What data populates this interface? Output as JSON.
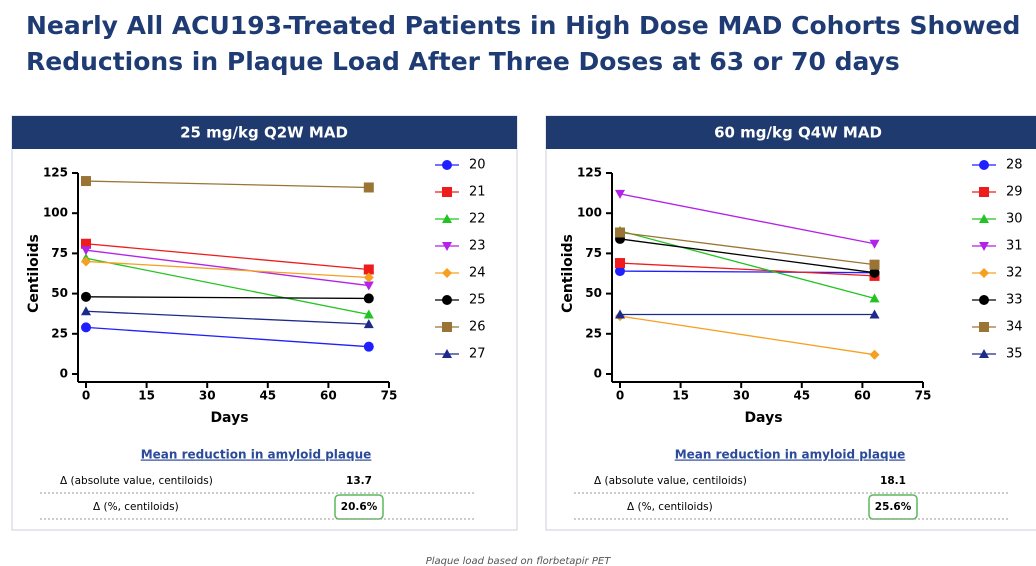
{
  "title": [
    "Nearly All ACU193-Treated Patients in High Dose MAD Cohorts Showed",
    "Reductions in Plaque Load After Three Doses at 63 or 70 days"
  ],
  "chart_data": [
    {
      "type": "line",
      "title": "25 mg/kg Q2W MAD",
      "xlabel": "Days",
      "ylabel": "Centiloids",
      "x": [
        0,
        70
      ],
      "xlim": [
        0,
        75
      ],
      "xticks": [
        0,
        15,
        30,
        45,
        60,
        75
      ],
      "ylim": [
        0,
        125
      ],
      "yticks": [
        0,
        25,
        50,
        75,
        100,
        125
      ],
      "series": [
        {
          "name": "20",
          "color": "#1f1fff",
          "marker": "circle",
          "values": [
            29,
            17
          ]
        },
        {
          "name": "21",
          "color": "#ee1c1c",
          "marker": "square",
          "values": [
            81,
            65
          ]
        },
        {
          "name": "22",
          "color": "#22c322",
          "marker": "triangle",
          "values": [
            72,
            37
          ]
        },
        {
          "name": "23",
          "color": "#b322e8",
          "marker": "triangle-down",
          "values": [
            77,
            55
          ]
        },
        {
          "name": "24",
          "color": "#f5a020",
          "marker": "diamond",
          "values": [
            70,
            60
          ]
        },
        {
          "name": "25",
          "color": "#000000",
          "marker": "circle",
          "values": [
            48,
            47
          ]
        },
        {
          "name": "26",
          "color": "#9a7434",
          "marker": "square",
          "values": [
            120,
            116
          ]
        },
        {
          "name": "27",
          "color": "#1e2a8a",
          "marker": "triangle",
          "values": [
            39,
            31
          ]
        }
      ]
    },
    {
      "type": "line",
      "title": "60 mg/kg Q4W MAD",
      "xlabel": "Days",
      "ylabel": "Centiloids",
      "x": [
        0,
        63
      ],
      "xlim": [
        0,
        75
      ],
      "xticks": [
        0,
        15,
        30,
        45,
        60,
        75
      ],
      "ylim": [
        0,
        125
      ],
      "yticks": [
        0,
        25,
        50,
        75,
        100,
        125
      ],
      "series": [
        {
          "name": "28",
          "color": "#1f1fff",
          "marker": "circle",
          "values": [
            64,
            63
          ]
        },
        {
          "name": "29",
          "color": "#ee1c1c",
          "marker": "square",
          "values": [
            69,
            61
          ]
        },
        {
          "name": "30",
          "color": "#22c322",
          "marker": "triangle",
          "values": [
            89,
            47
          ]
        },
        {
          "name": "31",
          "color": "#b322e8",
          "marker": "triangle-down",
          "values": [
            112,
            81
          ]
        },
        {
          "name": "32",
          "color": "#f5a020",
          "marker": "diamond",
          "values": [
            36,
            12
          ]
        },
        {
          "name": "33",
          "color": "#000000",
          "marker": "circle",
          "values": [
            84,
            63
          ]
        },
        {
          "name": "34",
          "color": "#9a7434",
          "marker": "square",
          "values": [
            88,
            68
          ]
        },
        {
          "name": "35",
          "color": "#1e2a8a",
          "marker": "triangle",
          "values": [
            37,
            37
          ]
        }
      ]
    }
  ],
  "tables": [
    {
      "heading": "Mean reduction in amyloid plaque",
      "rows": [
        {
          "label": "Δ (absolute value, centiloids)",
          "value": "13.7"
        },
        {
          "label": "Δ (%, centiloids)",
          "value": "20.6%"
        }
      ]
    },
    {
      "heading": "Mean reduction in amyloid plaque",
      "rows": [
        {
          "label": "Δ (absolute value, centiloids)",
          "value": "18.1"
        },
        {
          "label": "Δ (%, centiloids)",
          "value": "25.6%"
        }
      ]
    }
  ],
  "footnote": "Plaque load based on florbetapir PET"
}
